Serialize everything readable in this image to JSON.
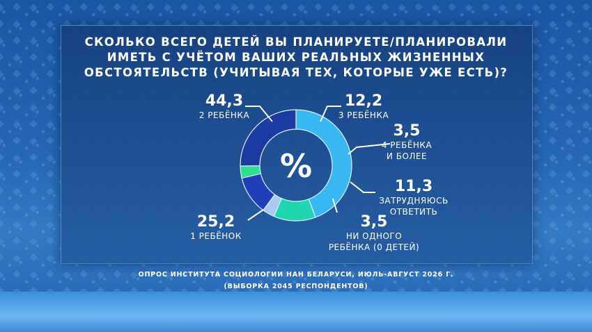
{
  "title_lines": [
    "СКОЛЬКО ВСЕГО ДЕТЕЙ ВЫ ПЛАНИРУЕТЕ/ПЛАНИРОВАЛИ",
    "ИМЕТЬ С УЧЁТОМ ВАШИХ РЕАЛЬНЫХ ЖИЗНЕННЫХ",
    "ОБСТОЯТЕЛЬСТВ (УЧИТЫВАЯ ТЕХ, КОТОРЫЕ УЖЕ ЕСТЬ)?"
  ],
  "footer_lines": [
    "ОПРОС ИНСТИТУТА СОЦИОЛОГИИ НАН БЕЛАРУСИ, ИЮЛЬ-АВГУСТ 2026 Г.",
    "(ВЫБОРКА 2045 РЕСПОНДЕНТОВ)"
  ],
  "chart_data": {
    "type": "pie",
    "donut": true,
    "center_label": "%",
    "slices": [
      {
        "value_label": "44,3",
        "value": 44.3,
        "label_lines": [
          "2 РЕБЁНКА"
        ],
        "color": "#38b8f2"
      },
      {
        "value_label": "12,2",
        "value": 12.2,
        "label_lines": [
          "3 РЕБЁНКА"
        ],
        "color": "#1fd6b0"
      },
      {
        "value_label": "3,5",
        "value": 3.5,
        "label_lines": [
          "4 РЕБЁНКА",
          "И БОЛЕЕ"
        ],
        "color": "#a9c9ee"
      },
      {
        "value_label": "11,3",
        "value": 11.3,
        "label_lines": [
          "ЗАТРУДНЯЮСЬ",
          "ОТВЕТИТЬ"
        ],
        "color": "#1f3fb8"
      },
      {
        "value_label": "3,5",
        "value": 3.5,
        "label_lines": [
          "НИ ОДНОГО",
          "РЕБЁНКА (0 ДЕТЕЙ)"
        ],
        "color": "#2ee08e"
      },
      {
        "value_label": "25,2",
        "value": 25.2,
        "label_lines": [
          "1 РЕБЁНОК"
        ],
        "color": "#1c3aa2"
      }
    ]
  }
}
